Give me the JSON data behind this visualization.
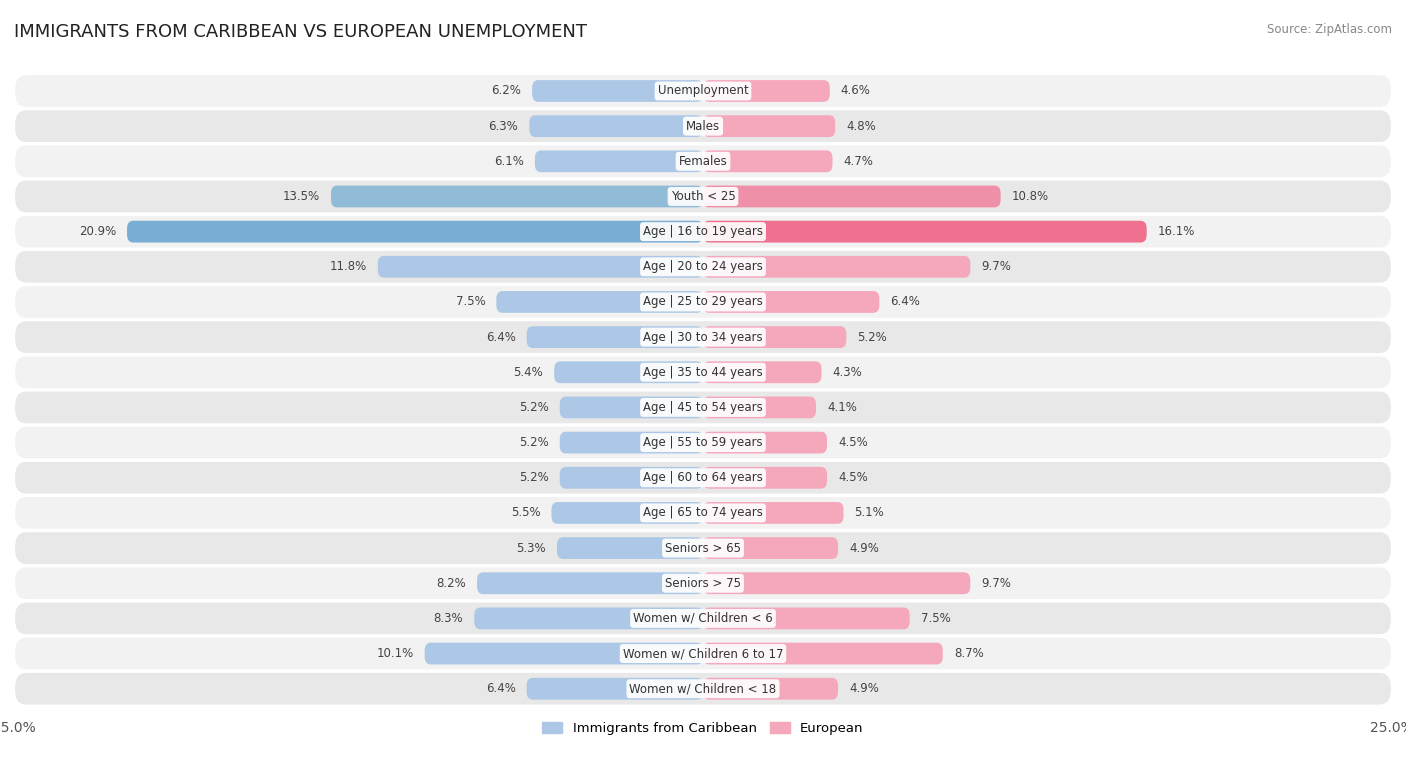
{
  "title": "IMMIGRANTS FROM CARIBBEAN VS EUROPEAN UNEMPLOYMENT",
  "source": "Source: ZipAtlas.com",
  "categories": [
    "Unemployment",
    "Males",
    "Females",
    "Youth < 25",
    "Age | 16 to 19 years",
    "Age | 20 to 24 years",
    "Age | 25 to 29 years",
    "Age | 30 to 34 years",
    "Age | 35 to 44 years",
    "Age | 45 to 54 years",
    "Age | 55 to 59 years",
    "Age | 60 to 64 years",
    "Age | 65 to 74 years",
    "Seniors > 65",
    "Seniors > 75",
    "Women w/ Children < 6",
    "Women w/ Children 6 to 17",
    "Women w/ Children < 18"
  ],
  "caribbean": [
    6.2,
    6.3,
    6.1,
    13.5,
    20.9,
    11.8,
    7.5,
    6.4,
    5.4,
    5.2,
    5.2,
    5.2,
    5.5,
    5.3,
    8.2,
    8.3,
    10.1,
    6.4
  ],
  "european": [
    4.6,
    4.8,
    4.7,
    10.8,
    16.1,
    9.7,
    6.4,
    5.2,
    4.3,
    4.1,
    4.5,
    4.5,
    5.1,
    4.9,
    9.7,
    7.5,
    8.7,
    4.9
  ],
  "caribbean_color_normal": "#adc8e6",
  "caribbean_color_medium": "#90bcd8",
  "caribbean_color_large": "#7aaed4",
  "european_color_normal": "#f5a8bc",
  "european_color_medium": "#f090a8",
  "european_color_large": "#f07090",
  "row_bg_odd": "#f2f2f2",
  "row_bg_even": "#e8e8e8",
  "axis_max": 25.0,
  "legend_caribbean": "Immigrants from Caribbean",
  "legend_european": "European",
  "bar_height": 0.62,
  "label_fontsize": 8.5,
  "value_fontsize": 8.5,
  "title_fontsize": 13
}
